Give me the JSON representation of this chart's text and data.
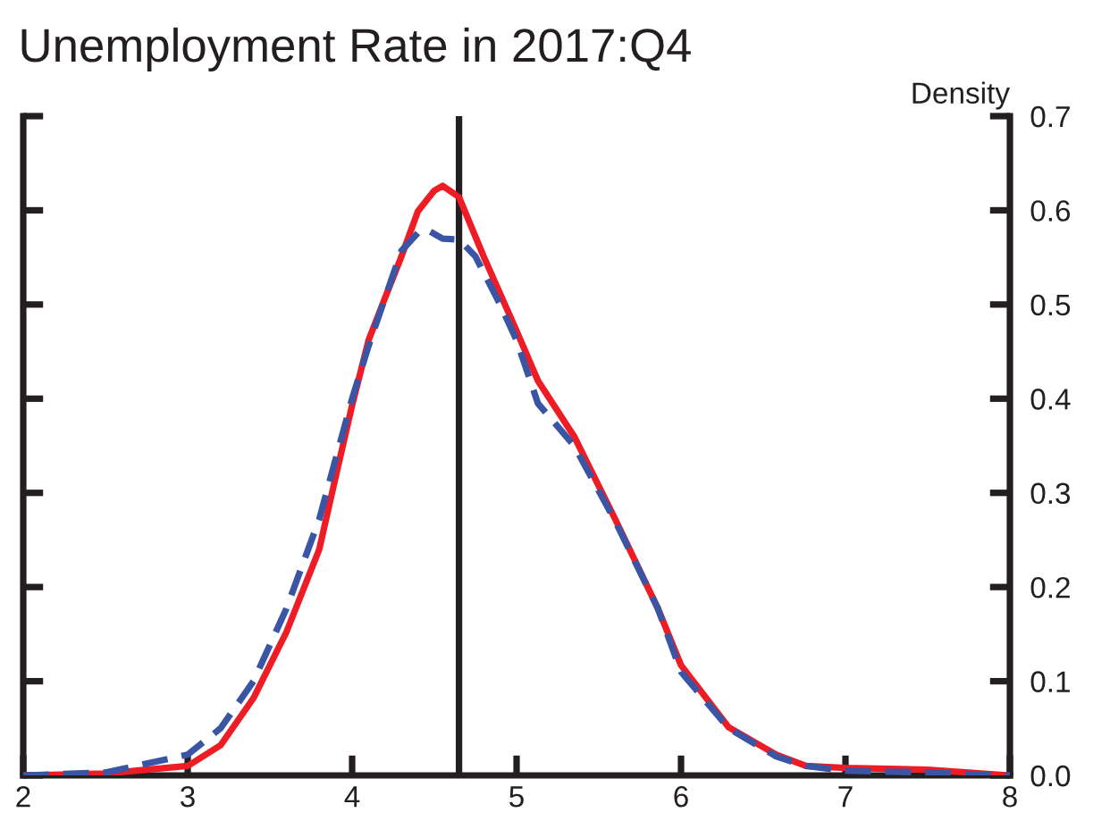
{
  "chart_data": {
    "type": "line",
    "title": "Unemployment Rate in 2017:Q4",
    "ylabel": "Density",
    "xlim": [
      2,
      8
    ],
    "xticks": [
      2,
      3,
      4,
      5,
      6,
      7,
      8
    ],
    "ylim": [
      0,
      0.7
    ],
    "yticks": [
      {
        "value": 0,
        "label": "0.0"
      },
      0.1,
      0.2,
      0.3,
      0.4,
      0.5,
      0.6,
      0.7
    ],
    "grid": false,
    "series": [
      {
        "color": "#ee1c25",
        "line_style": "solid",
        "x": [
          2,
          2.5,
          3,
          3.2,
          3.4,
          3.6,
          3.8,
          3.9,
          4,
          4.1,
          4.2,
          4.3,
          4.4,
          4.5,
          4.55,
          4.65,
          4.8,
          5,
          5.13,
          5.35,
          5.6,
          5.86,
          6,
          6.29,
          6.58,
          6.76,
          7,
          7.5,
          8
        ],
        "values": [
          0,
          0.002,
          0.01,
          0.032,
          0.082,
          0.152,
          0.24,
          0.317,
          0.393,
          0.462,
          0.507,
          0.551,
          0.599,
          0.621,
          0.626,
          0.614,
          0.551,
          0.472,
          0.419,
          0.36,
          0.272,
          0.177,
          0.117,
          0.051,
          0.022,
          0.01,
          0.008,
          0.006,
          0
        ]
      },
      {
        "color": "#3a55a4",
        "line_style": "dashed",
        "x": [
          2,
          2.5,
          3,
          3.2,
          3.4,
          3.6,
          3.8,
          3.9,
          4,
          4.1,
          4.2,
          4.3,
          4.4,
          4.45,
          4.55,
          4.65,
          4.75,
          4.9,
          5,
          5.13,
          5.35,
          5.6,
          5.86,
          6,
          6.29,
          6.58,
          6.76,
          7,
          7.5,
          8
        ],
        "values": [
          0,
          0.003,
          0.022,
          0.05,
          0.1,
          0.177,
          0.272,
          0.336,
          0.4,
          0.456,
          0.507,
          0.557,
          0.576,
          0.58,
          0.57,
          0.569,
          0.551,
          0.5,
          0.462,
          0.395,
          0.35,
          0.27,
          0.177,
          0.11,
          0.05,
          0.02,
          0.01,
          0.005,
          0.003,
          0
        ]
      }
    ],
    "ref_lines": [
      {
        "axis": "x",
        "value": 4.65,
        "color": "#231f20",
        "line_style": "solid"
      }
    ]
  }
}
